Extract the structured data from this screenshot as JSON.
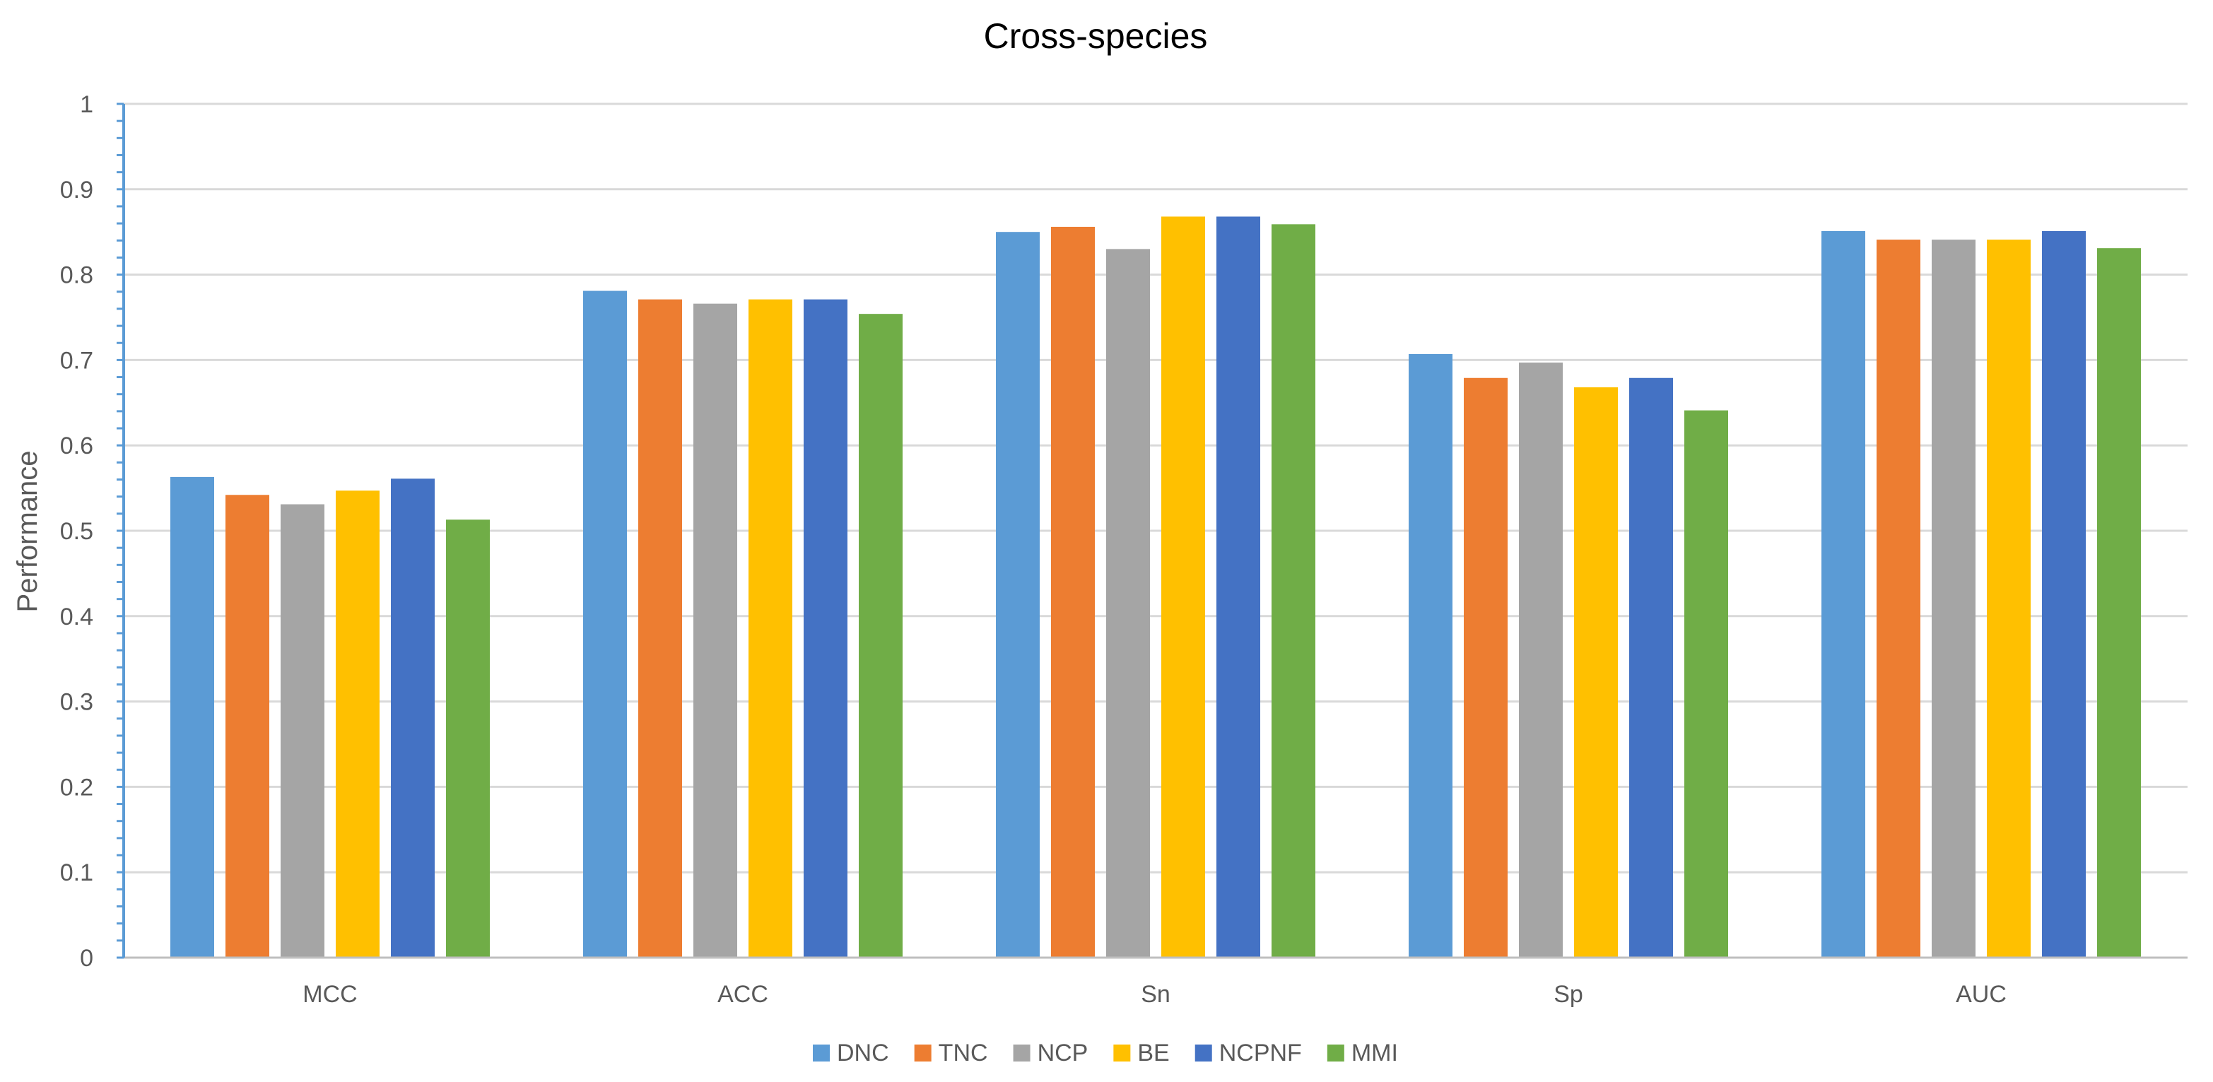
{
  "chart_data": {
    "type": "bar",
    "title": "Cross-species",
    "xlabel": "",
    "ylabel": "Performance",
    "ylim": [
      0,
      1
    ],
    "yticks": [
      "0",
      "0.1",
      "0.2",
      "0.3",
      "0.4",
      "0.5",
      "0.6",
      "0.7",
      "0.8",
      "0.9",
      "1"
    ],
    "grid": true,
    "legend_position": "bottom",
    "categories": [
      "MCC",
      "ACC",
      "Sn",
      "Sp",
      "AUC"
    ],
    "series": [
      {
        "name": "DNC",
        "color": "#5b9bd5",
        "values": [
          0.563,
          0.781,
          0.85,
          0.707,
          0.851
        ]
      },
      {
        "name": "TNC",
        "color": "#ed7d31",
        "values": [
          0.542,
          0.771,
          0.856,
          0.679,
          0.841
        ]
      },
      {
        "name": "NCP",
        "color": "#a5a5a5",
        "values": [
          0.531,
          0.766,
          0.83,
          0.697,
          0.841
        ]
      },
      {
        "name": "BE",
        "color": "#ffc000",
        "values": [
          0.547,
          0.771,
          0.868,
          0.668,
          0.841
        ]
      },
      {
        "name": "NCPNF",
        "color": "#4472c4",
        "values": [
          0.561,
          0.771,
          0.868,
          0.679,
          0.851
        ]
      },
      {
        "name": "MMI",
        "color": "#70ad47",
        "values": [
          0.513,
          0.754,
          0.859,
          0.641,
          0.831
        ]
      }
    ]
  }
}
